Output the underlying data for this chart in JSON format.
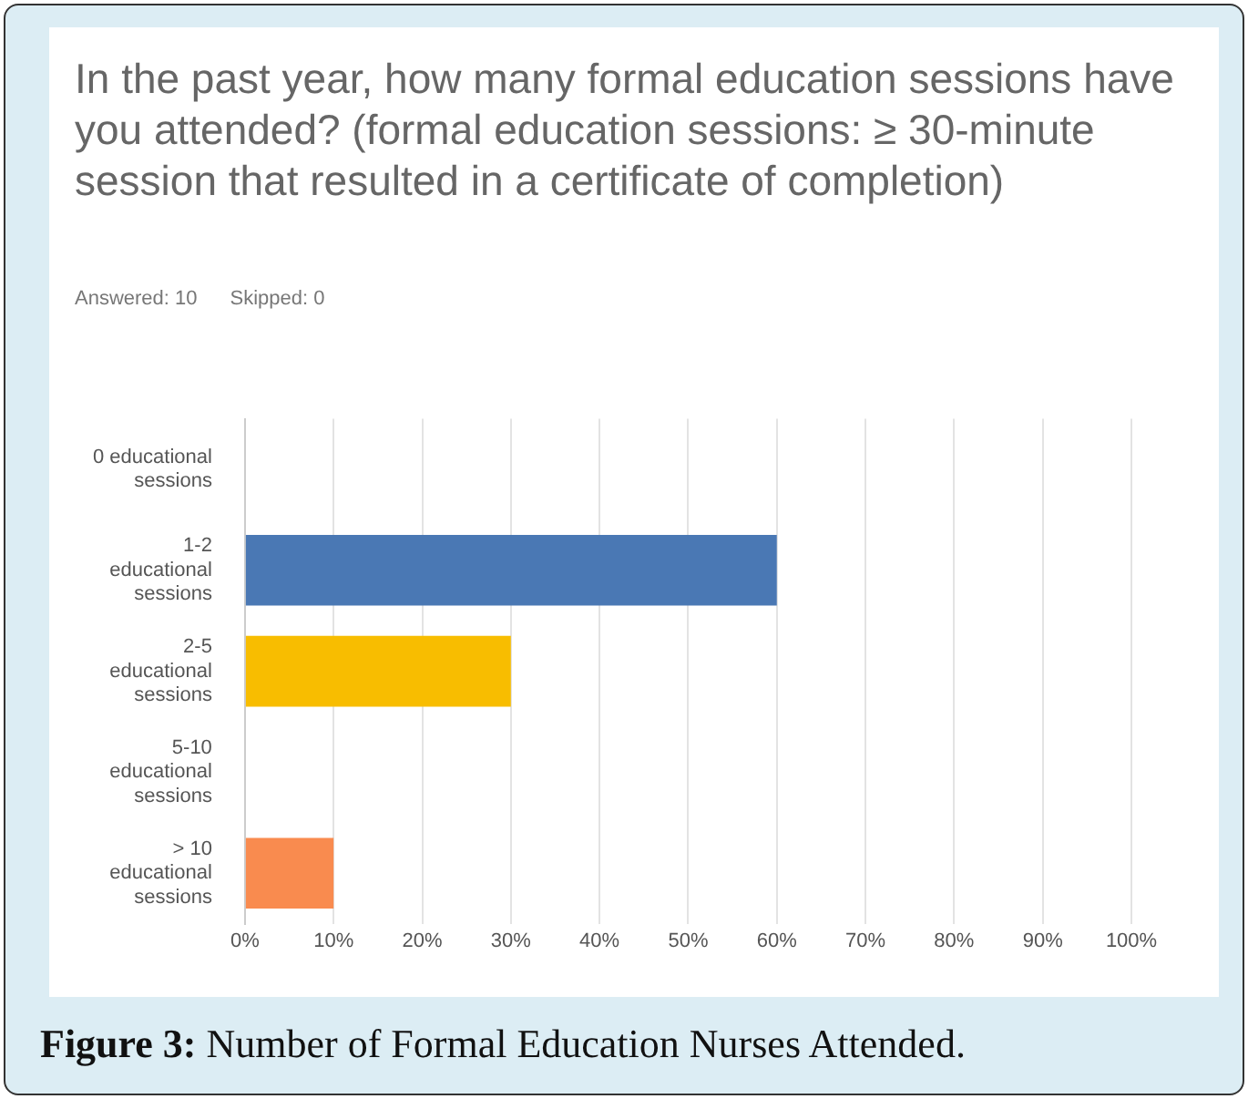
{
  "chart_data": {
    "type": "bar",
    "orientation": "horizontal",
    "title": "In the past year, how many formal education sessions have you attended? (formal education sessions: ≥ 30-minute session that resulted in a certificate of completion)",
    "categories": [
      "0 educational sessions",
      "1-2 educational sessions",
      "2-5 educational sessions",
      "5-10 educational sessions",
      "> 10 educational sessions"
    ],
    "values": [
      0,
      60,
      30,
      0,
      10
    ],
    "colors": [
      "#4a78b4",
      "#4a78b4",
      "#f8bd00",
      "#4a78b4",
      "#f98b4f"
    ],
    "xlim": [
      0,
      100
    ],
    "xticks": [
      {
        "value": 0,
        "label": "0%"
      },
      {
        "value": 10,
        "label": "10%"
      },
      {
        "value": 20,
        "label": "20%"
      },
      {
        "value": 30,
        "label": "30%"
      },
      {
        "value": 40,
        "label": "40%"
      },
      {
        "value": 50,
        "label": "50%"
      },
      {
        "value": 60,
        "label": "60%"
      },
      {
        "value": 70,
        "label": "70%"
      },
      {
        "value": 80,
        "label": "80%"
      },
      {
        "value": 90,
        "label": "90%"
      },
      {
        "value": 100,
        "label": "100%"
      }
    ],
    "grid": "x",
    "annotations": [
      "Answered: 10",
      "Skipped: 0",
      "Figure 3: Number of Formal Education Nurses Attended."
    ]
  }
}
